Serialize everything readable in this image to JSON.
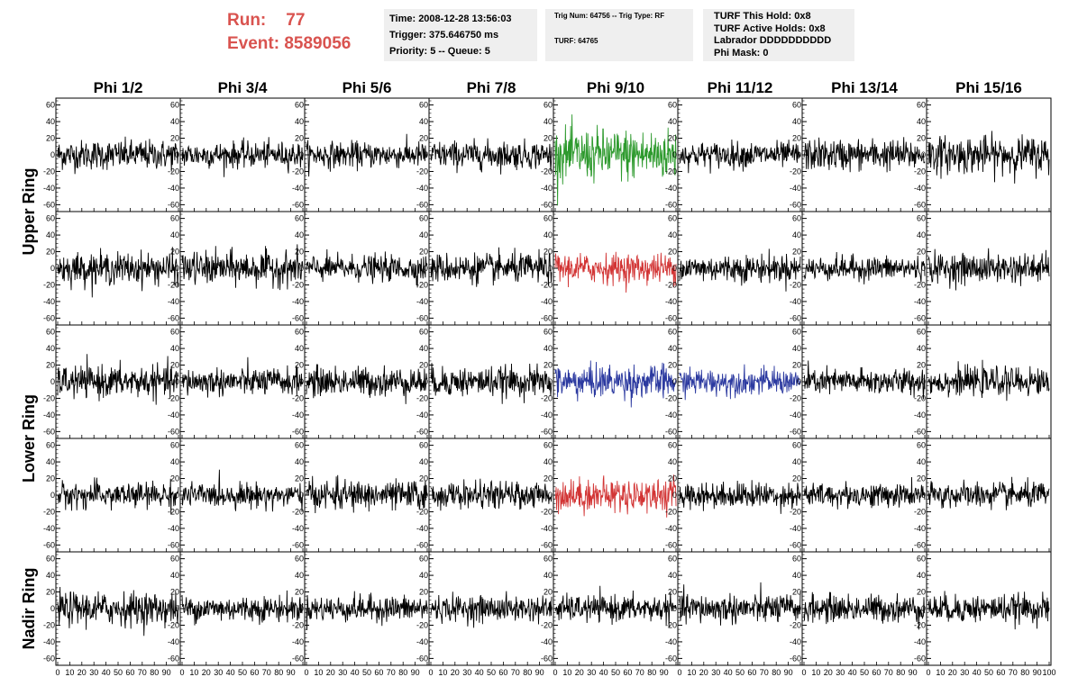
{
  "header": {
    "run_label": "Run:",
    "run_value": "77",
    "event_label": "Event:",
    "event_value": "8589056",
    "time": "Time: 2008-12-28 13:56:03",
    "trigger": "Trigger: 375.646750 ms",
    "priority": "Priority: 5 -- Queue: 5",
    "trig_num": "Trig Num: 64756 -- Trig Type: RF",
    "turf": "TURF: 64765",
    "turf_hold": "TURF This Hold: 0x8",
    "turf_active": "TURF Active Holds: 0x8",
    "labrador": "Labrador DDDDDDDDDD",
    "phi_mask": "Phi Mask: 0"
  },
  "chart_data": {
    "type": "line",
    "columns": [
      "Phi 1/2",
      "Phi 3/4",
      "Phi 5/6",
      "Phi 7/8",
      "Phi 9/10",
      "Phi 11/12",
      "Phi 13/14",
      "Phi 15/16"
    ],
    "row_groups": [
      {
        "label": "Upper Ring",
        "rows": [
          0,
          1
        ]
      },
      {
        "label": "Lower Ring",
        "rows": [
          2,
          3
        ]
      },
      {
        "label": "Nadir Ring",
        "rows": [
          4
        ]
      }
    ],
    "ylim": [
      -65,
      65
    ],
    "xlim": [
      0,
      100
    ],
    "y_ticks": [
      -60,
      -40,
      -20,
      0,
      20,
      40,
      60
    ],
    "x_ticks": [
      0,
      10,
      20,
      30,
      40,
      50,
      60,
      70,
      80,
      90,
      100
    ],
    "x_tick_labels": [
      "0",
      "10",
      "20",
      "30",
      "40",
      "50",
      "60",
      "70",
      "80",
      "90",
      "100"
    ],
    "samples_per_trace": 260,
    "colors": {
      "default": "#000000",
      "green": "#2e9a2e",
      "red": "#d23434",
      "blue": "#2c3aa0"
    },
    "trace_colors": [
      [
        "default",
        "default",
        "default",
        "default",
        "green",
        "default",
        "default",
        "default"
      ],
      [
        "default",
        "default",
        "default",
        "default",
        "red",
        "default",
        "default",
        "default"
      ],
      [
        "default",
        "default",
        "default",
        "default",
        "blue",
        "blue",
        "default",
        "default"
      ],
      [
        "default",
        "default",
        "default",
        "default",
        "red",
        "default",
        "default",
        "default"
      ],
      [
        "default",
        "default",
        "default",
        "default",
        "default",
        "default",
        "default",
        "default"
      ]
    ],
    "trace_amplitude": [
      [
        16,
        14,
        14,
        15,
        28,
        14,
        17,
        20
      ],
      [
        17,
        18,
        14,
        16,
        16,
        15,
        13,
        16
      ],
      [
        17,
        15,
        16,
        16,
        18,
        14,
        14,
        15
      ],
      [
        14,
        13,
        16,
        14,
        18,
        14,
        13,
        14
      ],
      [
        18,
        14,
        14,
        14,
        14,
        16,
        15,
        15
      ]
    ]
  }
}
